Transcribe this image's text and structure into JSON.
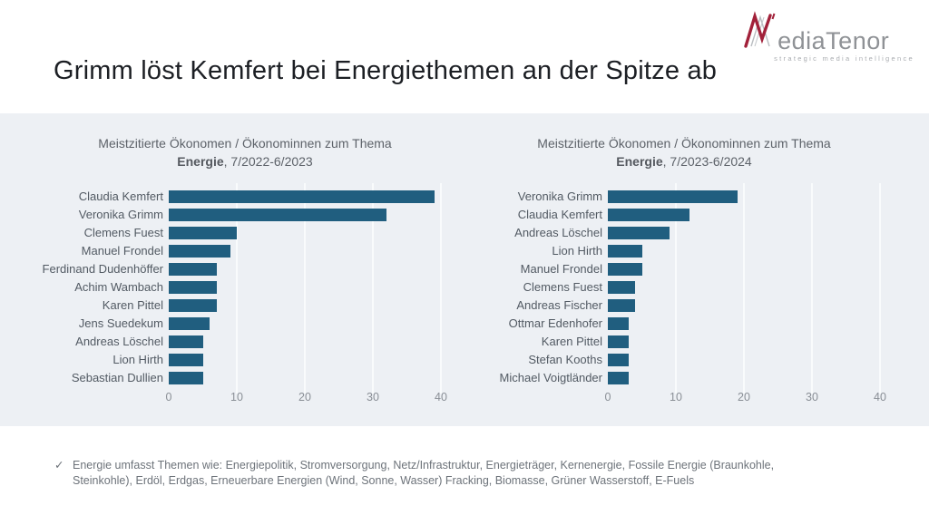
{
  "header": {
    "title": "Grimm löst Kemfert bei Energiethemen an der Spitze ab",
    "logo": {
      "word_rest": "edia",
      "word_tenor": "Tenor",
      "tagline": "strategic media intelligence",
      "accent_color": "#a2213a",
      "gray_color": "#8f9296"
    }
  },
  "colors": {
    "panel_background": "#edf0f4",
    "bar": "#205e7f",
    "gridline": "#f9fbfc",
    "axis_text": "#8a8f96",
    "category_text": "#525a63",
    "chart_title_text": "#5d6269"
  },
  "chart_data": [
    {
      "type": "bar",
      "orientation": "horizontal",
      "title": "Meistzitierte Ökonomen / Ökonominnen zum Thema",
      "subtitle_bold": "Energie",
      "subtitle_rest": ", 7/2022-6/2023",
      "categories": [
        "Claudia Kemfert",
        "Veronika Grimm",
        "Clemens Fuest",
        "Manuel Frondel",
        "Ferdinand Dudenhöffer",
        "Achim Wambach",
        "Karen Pittel",
        "Jens Suedekum",
        "Andreas Löschel",
        "Lion Hirth",
        "Sebastian Dullien"
      ],
      "values": [
        39,
        32,
        10,
        9,
        7,
        7,
        7,
        6,
        5,
        5,
        5
      ],
      "xlabel": "",
      "ylabel": "",
      "xlim": [
        0,
        40
      ],
      "xticks": [
        0,
        10,
        20,
        30,
        40
      ],
      "grid": true,
      "legend": false
    },
    {
      "type": "bar",
      "orientation": "horizontal",
      "title": "Meistzitierte Ökonomen / Ökonominnen zum Thema",
      "subtitle_bold": "Energie",
      "subtitle_rest": ", 7/2023-6/2024",
      "categories": [
        "Veronika Grimm",
        "Claudia Kemfert",
        "Andreas Löschel",
        "Lion Hirth",
        "Manuel Frondel",
        "Clemens Fuest",
        "Andreas Fischer",
        "Ottmar Edenhofer",
        "Karen Pittel",
        "Stefan Kooths",
        "Michael Voigtländer"
      ],
      "values": [
        19,
        12,
        9,
        5,
        5,
        4,
        4,
        3,
        3,
        3,
        3
      ],
      "xlabel": "",
      "ylabel": "",
      "xlim": [
        0,
        40
      ],
      "xticks": [
        0,
        10,
        20,
        30,
        40
      ],
      "grid": true,
      "legend": false
    }
  ],
  "footnote": {
    "bullet": "✓",
    "text": "Energie umfasst Themen wie: Energiepolitik, Stromversorgung, Netz/Infrastruktur, Energieträger, Kernenergie, Fossile Energie (Braunkohle, Steinkohle), Erdöl, Erdgas, Erneuerbare Energien (Wind, Sonne, Wasser) Fracking, Biomasse, Grüner Wasserstoff, E-Fuels"
  }
}
